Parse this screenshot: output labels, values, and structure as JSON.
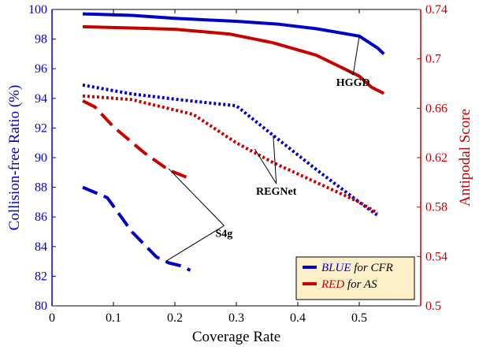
{
  "chart_data": {
    "type": "line",
    "xlabel": "Coverage Rate",
    "ylabel_left": "Collision-free Ratio (%)",
    "ylabel_right": "Antipodal Score",
    "xlim": [
      0,
      0.6
    ],
    "ylim_left": [
      80,
      100
    ],
    "ylim_right": [
      0.5,
      0.74
    ],
    "x_ticks": [
      "0",
      "0.1",
      "0.2",
      "0.3",
      "0.4",
      "0.5"
    ],
    "y_left_ticks": [
      "80",
      "82",
      "84",
      "86",
      "88",
      "90",
      "92",
      "94",
      "96",
      "98",
      "100"
    ],
    "y_right_ticks": [
      "0.5",
      "0.54",
      "0.58",
      "0.62",
      "0.66",
      "0.7",
      "0.74"
    ],
    "colors": {
      "blue": "#0000c8",
      "red": "#c80000"
    },
    "series": [
      {
        "method": "HGGD",
        "metric": "CFR",
        "axis": "left",
        "color": "blue",
        "style": "solid",
        "x": [
          0.05,
          0.13,
          0.2,
          0.3,
          0.37,
          0.43,
          0.5,
          0.53,
          0.54
        ],
        "y": [
          99.7,
          99.6,
          99.4,
          99.2,
          99.0,
          98.7,
          98.2,
          97.4,
          97.0
        ]
      },
      {
        "method": "HGGD",
        "metric": "AS",
        "axis": "right",
        "color": "red",
        "style": "solid",
        "x": [
          0.05,
          0.13,
          0.2,
          0.29,
          0.36,
          0.43,
          0.5,
          0.52,
          0.54
        ],
        "y": [
          0.726,
          0.725,
          0.724,
          0.72,
          0.713,
          0.703,
          0.686,
          0.677,
          0.672
        ]
      },
      {
        "method": "REGNet",
        "metric": "CFR",
        "axis": "left",
        "color": "blue",
        "style": "dotted",
        "x": [
          0.05,
          0.13,
          0.21,
          0.3,
          0.36,
          0.43,
          0.5,
          0.53
        ],
        "y": [
          94.9,
          94.3,
          93.9,
          93.5,
          91.5,
          89.2,
          87.0,
          86.1
        ]
      },
      {
        "method": "REGNet",
        "metric": "AS",
        "axis": "right",
        "color": "red",
        "style": "dotted",
        "x": [
          0.05,
          0.13,
          0.23,
          0.3,
          0.36,
          0.43,
          0.5,
          0.53
        ],
        "y": [
          0.67,
          0.667,
          0.655,
          0.632,
          0.616,
          0.6,
          0.584,
          0.575
        ]
      },
      {
        "method": "S4g",
        "metric": "CFR",
        "axis": "left",
        "color": "blue",
        "style": "dashed",
        "x": [
          0.05,
          0.09,
          0.13,
          0.17,
          0.19,
          0.21,
          0.225
        ],
        "y": [
          88.0,
          87.3,
          85.0,
          83.3,
          82.9,
          82.7,
          82.4
        ]
      },
      {
        "method": "S4g",
        "metric": "AS",
        "axis": "right",
        "color": "red",
        "style": "dashed",
        "x": [
          0.05,
          0.07,
          0.1,
          0.15,
          0.19,
          0.22
        ],
        "y": [
          0.666,
          0.661,
          0.645,
          0.624,
          0.61,
          0.604
        ]
      }
    ],
    "annotations": [
      {
        "text": "HGGD",
        "label_pos": [
          0.49,
          0.678
        ],
        "label_axis": "right",
        "targets": [
          [
            0.5,
            98.2,
            "left"
          ],
          [
            0.48,
            0.691,
            "right"
          ]
        ]
      },
      {
        "text": "REGNet",
        "label_pos": [
          0.365,
          0.59
        ],
        "label_axis": "right",
        "targets": [
          [
            0.36,
            91.5,
            "left"
          ],
          [
            0.33,
            0.627,
            "right"
          ]
        ]
      },
      {
        "text": "S4g",
        "label_pos": [
          0.28,
          0.556
        ],
        "label_axis": "right",
        "targets": [
          [
            0.185,
            83.0,
            "left"
          ],
          [
            0.19,
            0.611,
            "right"
          ]
        ]
      }
    ],
    "legend": {
      "position": "bottom-right",
      "background": "#fdefc8",
      "entries": [
        {
          "color": "blue",
          "emph": "BLUE",
          "rest": " for CFR"
        },
        {
          "color": "red",
          "emph": "RED",
          "rest": " for AS"
        }
      ]
    }
  }
}
